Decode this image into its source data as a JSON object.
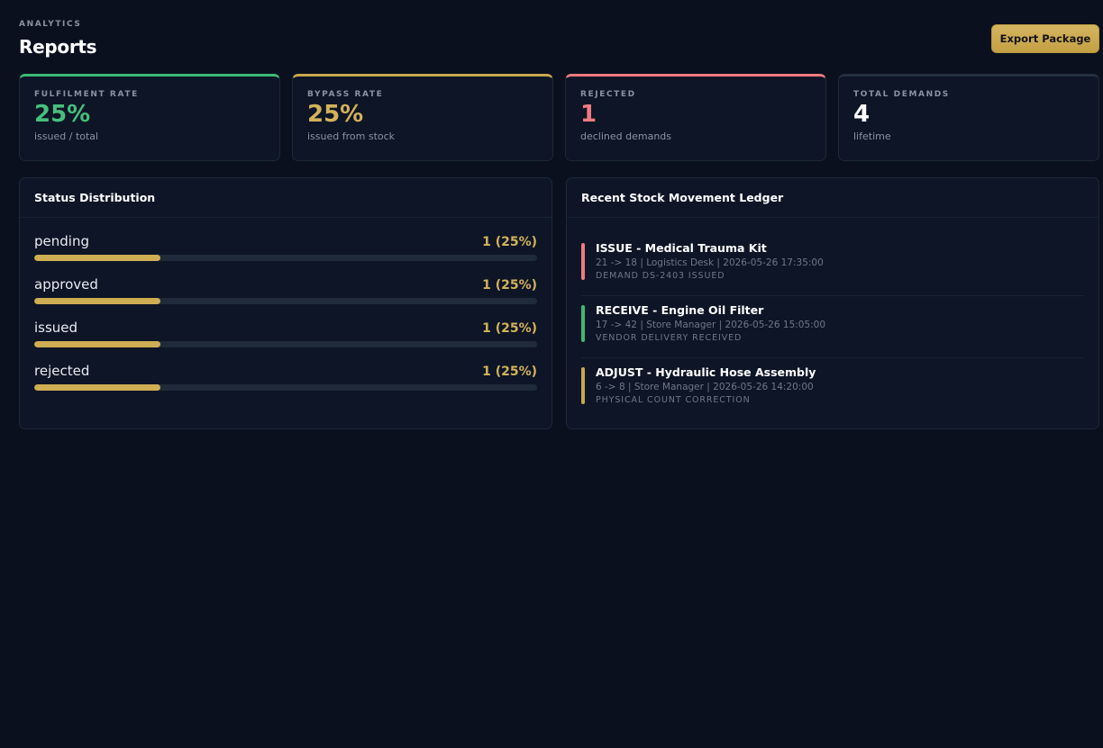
{
  "header": {
    "eyebrow": "ANALYTICS",
    "title": "Reports",
    "export_label": "Export Package"
  },
  "stats": [
    {
      "label": "FULFILMENT RATE",
      "value": "25%",
      "sub": "issued / total",
      "accent": "#3dba74"
    },
    {
      "label": "BYPASS RATE",
      "value": "25%",
      "sub": "issued from stock",
      "accent": "#c9a84c"
    },
    {
      "label": "REJECTED",
      "value": "1",
      "sub": "declined demands",
      "accent": "#ef7b7f"
    },
    {
      "label": "TOTAL DEMANDS",
      "value": "4",
      "sub": "lifetime",
      "accent": "#252f3f"
    }
  ],
  "status_distribution": {
    "title": "Status Distribution",
    "items": [
      {
        "name": "pending",
        "value": "1 (25%)",
        "percent": 25
      },
      {
        "name": "approved",
        "value": "1 (25%)",
        "percent": 25
      },
      {
        "name": "issued",
        "value": "1 (25%)",
        "percent": 25
      },
      {
        "name": "rejected",
        "value": "1 (25%)",
        "percent": 25
      }
    ]
  },
  "ledger": {
    "title": "Recent Stock Movement Ledger",
    "items": [
      {
        "title": "ISSUE - Medical Trauma Kit",
        "meta": "21 -> 18 | Logistics Desk | 2026-05-26 17:35:00",
        "note": "DEMAND DS-2403 ISSUED",
        "color": "#ef7b7f"
      },
      {
        "title": "RECEIVE - Engine Oil Filter",
        "meta": "17 -> 42 | Store Manager | 2026-05-26 15:05:00",
        "note": "VENDOR DELIVERY RECEIVED",
        "color": "#3dba74"
      },
      {
        "title": "ADJUST - Hydraulic Hose Assembly",
        "meta": "6 -> 8 | Store Manager | 2026-05-26 14:20:00",
        "note": "PHYSICAL COUNT CORRECTION",
        "color": "#c9a84c"
      }
    ]
  }
}
